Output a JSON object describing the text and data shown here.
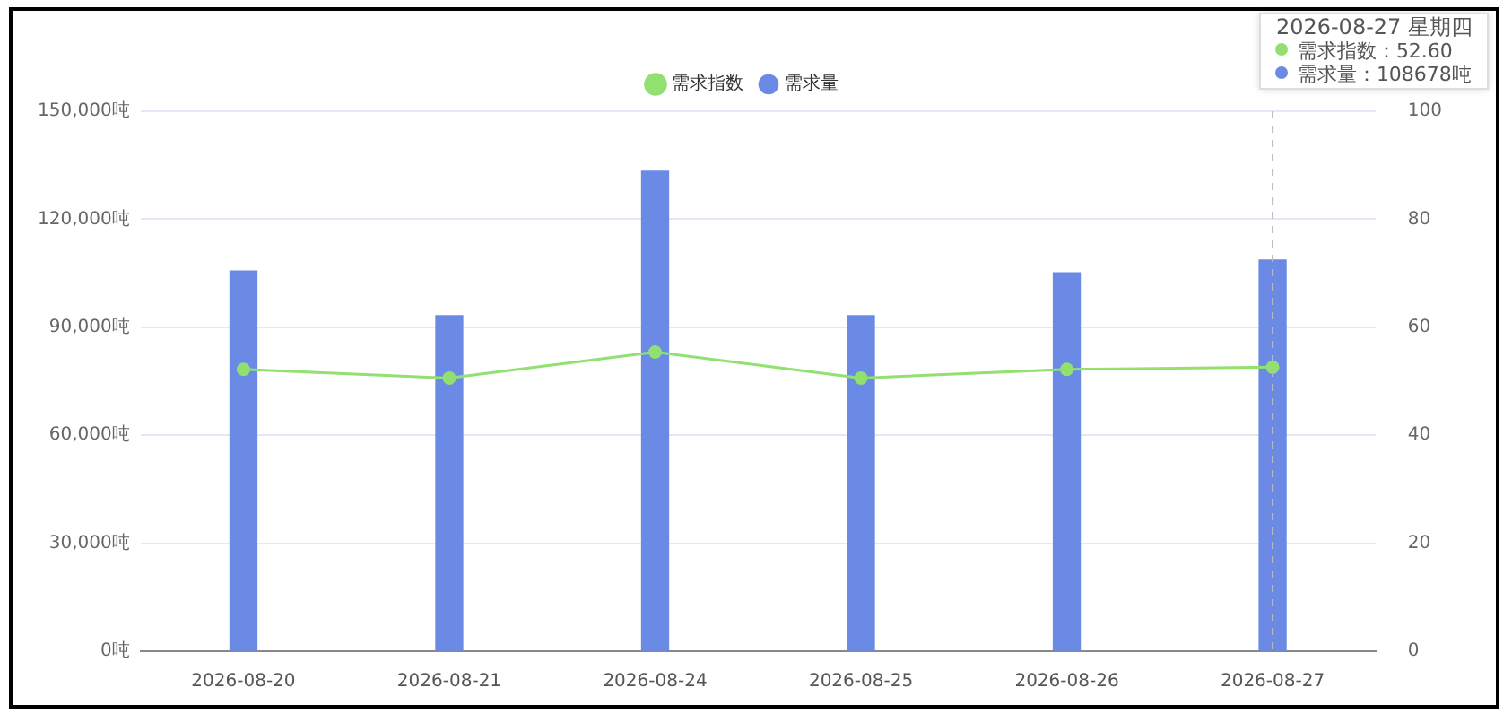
{
  "chart_data": {
    "type": "bar",
    "categories": [
      "2026-08-20",
      "2026-08-21",
      "2026-08-24",
      "2026-08-25",
      "2026-08-26",
      "2026-08-27"
    ],
    "series": [
      {
        "name": "需求指数",
        "type": "line",
        "axis": "y2",
        "color": "#91e070",
        "values": [
          52.2,
          50.6,
          55.4,
          50.6,
          52.2,
          52.6
        ]
      },
      {
        "name": "需求量",
        "color": "#6a8ae6",
        "values": [
          105600,
          93200,
          133300,
          93200,
          105100,
          108678
        ]
      }
    ],
    "ylim": [
      0,
      150000
    ],
    "yticks": [
      {
        "value": 0,
        "label": "0吨"
      },
      {
        "value": 30000,
        "label": "30,000吨"
      },
      {
        "value": 60000,
        "label": "60,000吨"
      },
      {
        "value": 90000,
        "label": "90,000吨"
      },
      {
        "value": 120000,
        "label": "120,000吨"
      },
      {
        "value": 150000,
        "label": "150,000吨"
      }
    ],
    "y2lim": [
      0,
      100
    ],
    "y2ticks": [
      0,
      20,
      40,
      60,
      80,
      100
    ],
    "grid": "y",
    "legend": "top",
    "marker": "circle",
    "ref_lines": [
      {
        "axis": "x",
        "value": "2026-08-27",
        "line_style": "dashed",
        "color": "#bbbbbb"
      }
    ],
    "annotations": [
      "2026-08-27 星期四",
      "需求指数：52.60",
      "需求量：108678吨"
    ]
  }
}
